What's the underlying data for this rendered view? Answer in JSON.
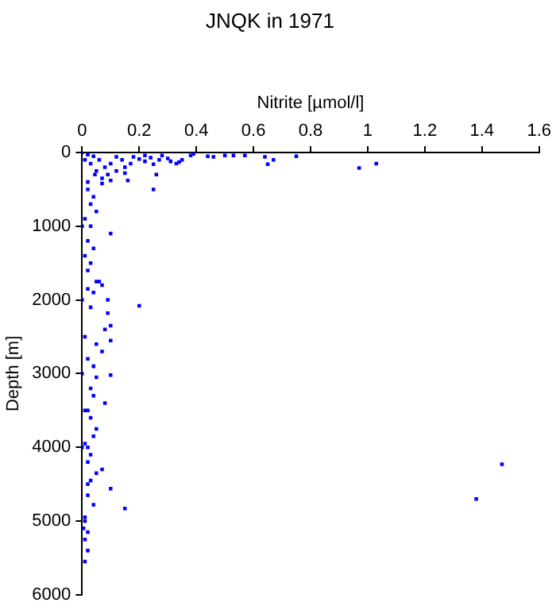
{
  "chart_data": {
    "type": "scatter",
    "title": "JNQK in 1971",
    "xlabel": "Nitrite [µmol/l]",
    "ylabel": "Depth [m]",
    "xlim": [
      0,
      1.6
    ],
    "xticks": [
      0,
      0.2,
      0.4,
      0.6,
      0.8,
      1,
      1.2,
      1.4,
      1.6
    ],
    "ylim": [
      6000,
      0
    ],
    "yticks": [
      0,
      1000,
      2000,
      3000,
      4000,
      5000,
      6000
    ],
    "grid": false,
    "legend": false,
    "marker": "square",
    "series": [
      {
        "color": "#0000ff",
        "x": [
          0.75,
          0.57,
          0.53,
          0.5,
          0.46,
          0.44,
          0.39,
          0.38,
          0.35,
          0.34,
          0.33,
          0.3,
          0.31,
          0.28,
          0.27,
          0.25,
          0.24,
          0.22,
          0.22,
          0.2,
          0.18,
          0.17,
          0.15,
          0.14,
          0.12,
          0.12,
          0.1,
          0.09,
          0.08,
          0.07,
          0.06,
          0.05,
          0.04,
          0.03,
          0.02,
          0.01,
          0,
          0.65,
          0.64,
          0.67,
          0.97,
          1.03,
          0.26,
          0.25,
          0.15,
          0.16,
          0.1,
          0.07,
          0.045,
          0.02,
          0.1,
          0.02,
          0.04,
          0.03,
          0.05,
          0.01,
          0.03,
          0.02,
          0.04,
          0.01,
          0.03,
          0.02,
          0.05,
          0.06,
          0.07,
          0.02,
          0.04,
          0.09,
          0.2,
          0.03,
          0.09,
          0.1,
          0.08,
          0.1,
          0.05,
          0.07,
          0.02,
          0.04,
          0.1,
          0.05,
          0.03,
          0.04,
          0.08,
          0.02,
          0.03,
          0.05,
          0.04,
          0.01,
          0.02,
          0.03,
          0.02,
          0.07,
          0.05,
          0.03,
          0.1,
          0.02,
          0.04,
          0.15,
          0.01,
          0.01,
          0.005,
          0.02,
          0.01,
          0.02,
          0.01,
          1.47,
          1.38,
          0,
          0,
          0,
          0,
          0.01,
          0.01,
          0.02
        ],
        "values": [
          50,
          40,
          40,
          40,
          60,
          50,
          20,
          40,
          100,
          130,
          150,
          80,
          120,
          40,
          100,
          160,
          70,
          40,
          120,
          90,
          60,
          150,
          200,
          100,
          250,
          60,
          150,
          300,
          200,
          350,
          100,
          250,
          50,
          150,
          30,
          100,
          0,
          160,
          60,
          100,
          210,
          150,
          300,
          500,
          280,
          380,
          380,
          420,
          300,
          400,
          1100,
          500,
          600,
          700,
          800,
          900,
          1000,
          1200,
          1300,
          1400,
          1500,
          1600,
          1750,
          1750,
          1800,
          1850,
          1900,
          2000,
          2080,
          2100,
          2180,
          2350,
          2400,
          2550,
          2600,
          2700,
          2800,
          2900,
          3020,
          3050,
          3200,
          3300,
          3400,
          3500,
          3600,
          3750,
          3850,
          3950,
          4000,
          4100,
          4200,
          4300,
          4350,
          4450,
          4560,
          4650,
          4780,
          4830,
          4950,
          5000,
          5100,
          5150,
          5250,
          5400,
          5550,
          4230,
          4700,
          1000,
          2000,
          3000,
          4000,
          2500,
          3500,
          4500
        ]
      }
    ]
  }
}
